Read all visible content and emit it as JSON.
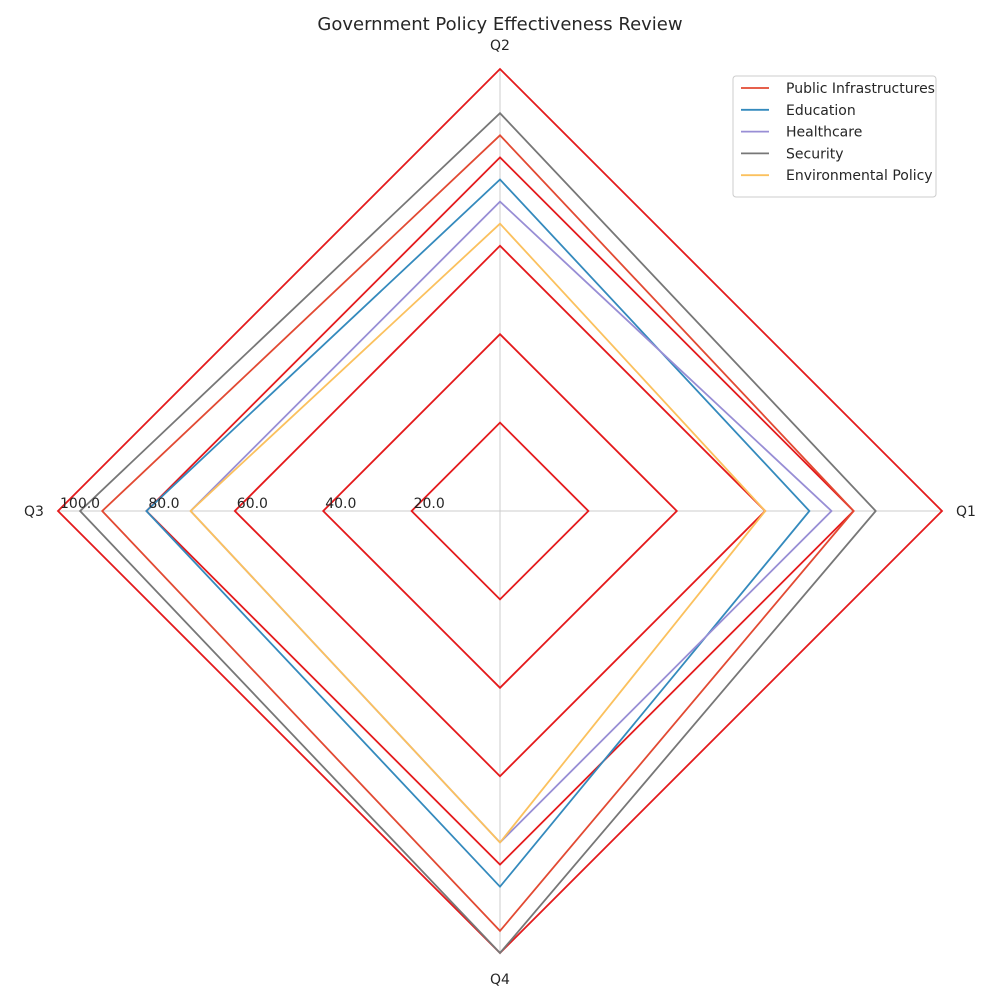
{
  "chart_data": {
    "type": "radar",
    "title": "Government Policy Effectiveness Review",
    "axes": [
      "Q1",
      "Q2",
      "Q3",
      "Q4"
    ],
    "rlim": [
      0,
      100
    ],
    "grid": true,
    "gridline_color": "#e41a1c",
    "rings": [
      20,
      40,
      60,
      80,
      100
    ],
    "ring_labels": [
      "20.0",
      "40.0",
      "60.0",
      "80.0",
      "100.0"
    ],
    "legend_position": "top-right",
    "series": [
      {
        "name": "Public Infrastructures",
        "color": "#e24a33",
        "values": [
          80,
          85,
          90,
          95
        ]
      },
      {
        "name": "Education",
        "color": "#348abd",
        "values": [
          70,
          75,
          80,
          85
        ]
      },
      {
        "name": "Healthcare",
        "color": "#988ed5",
        "values": [
          75,
          70,
          70,
          75
        ]
      },
      {
        "name": "Security",
        "color": "#777777",
        "values": [
          85,
          90,
          95,
          100
        ]
      },
      {
        "name": "Environmental Policy",
        "color": "#fbc15e",
        "values": [
          60,
          65,
          70,
          75
        ]
      }
    ]
  }
}
